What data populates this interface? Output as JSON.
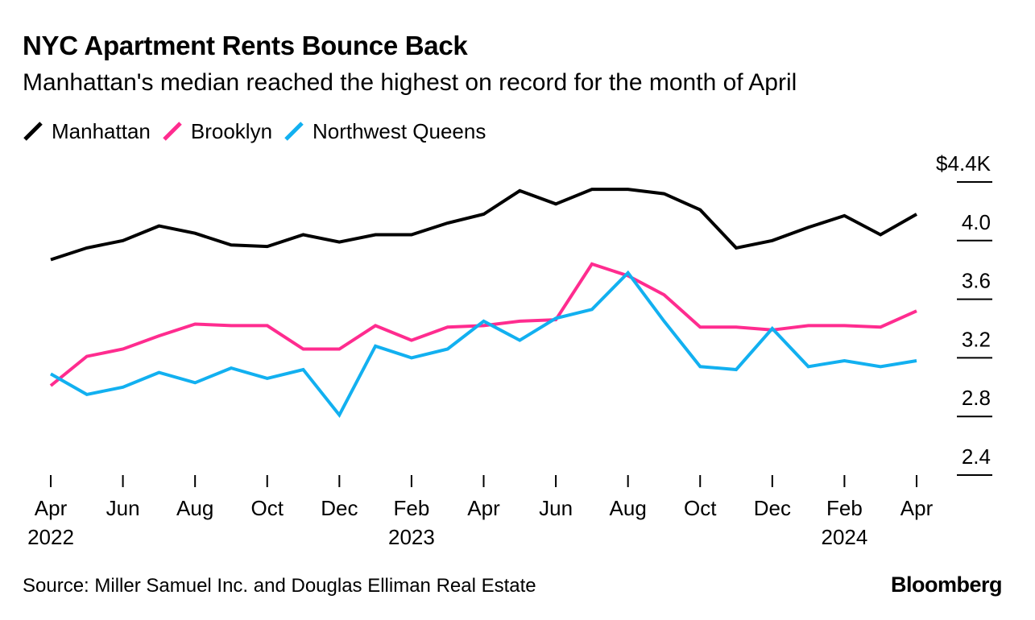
{
  "chart_data": {
    "type": "line",
    "title": "NYC Apartment Rents Bounce Back",
    "subtitle": "Manhattan's median reached the highest on record for the month of April",
    "xlabel": "",
    "ylabel": "",
    "x": [
      "Apr 2022",
      "May 2022",
      "Jun 2022",
      "Jul 2022",
      "Aug 2022",
      "Sep 2022",
      "Oct 2022",
      "Nov 2022",
      "Dec 2022",
      "Jan 2023",
      "Feb 2023",
      "Mar 2023",
      "Apr 2023",
      "May 2023",
      "Jun 2023",
      "Jul 2023",
      "Aug 2023",
      "Sep 2023",
      "Oct 2023",
      "Nov 2023",
      "Dec 2023",
      "Jan 2024",
      "Feb 2024",
      "Mar 2024",
      "Apr 2024"
    ],
    "ylim": [
      2.4,
      4.4
    ],
    "y_ticks": [
      {
        "value": 4.4,
        "label": "$4.4K"
      },
      {
        "value": 4.0,
        "label": "4.0"
      },
      {
        "value": 3.6,
        "label": "3.6"
      },
      {
        "value": 3.2,
        "label": "3.2"
      },
      {
        "value": 2.8,
        "label": "2.8"
      },
      {
        "value": 2.4,
        "label": "2.4"
      }
    ],
    "x_ticks": [
      {
        "index": 0,
        "month": "Apr",
        "year": "2022"
      },
      {
        "index": 2,
        "month": "Jun",
        "year": ""
      },
      {
        "index": 4,
        "month": "Aug",
        "year": ""
      },
      {
        "index": 6,
        "month": "Oct",
        "year": ""
      },
      {
        "index": 8,
        "month": "Dec",
        "year": ""
      },
      {
        "index": 10,
        "month": "Feb",
        "year": "2023"
      },
      {
        "index": 12,
        "month": "Apr",
        "year": ""
      },
      {
        "index": 14,
        "month": "Jun",
        "year": ""
      },
      {
        "index": 16,
        "month": "Aug",
        "year": ""
      },
      {
        "index": 18,
        "month": "Oct",
        "year": ""
      },
      {
        "index": 20,
        "month": "Dec",
        "year": ""
      },
      {
        "index": 22,
        "month": "Feb",
        "year": "2024"
      },
      {
        "index": 24,
        "month": "Apr",
        "year": ""
      }
    ],
    "series": [
      {
        "name": "Manhattan",
        "color": "#000000",
        "values": [
          3.87,
          3.95,
          4.0,
          4.1,
          4.05,
          3.97,
          3.96,
          4.04,
          3.99,
          4.04,
          4.04,
          4.12,
          4.18,
          4.34,
          4.25,
          4.35,
          4.35,
          4.32,
          4.21,
          3.95,
          4.0,
          4.09,
          4.17,
          4.04,
          4.18
        ]
      },
      {
        "name": "Brooklyn",
        "color": "#ff2c8f",
        "values": [
          3.01,
          3.21,
          3.26,
          3.35,
          3.43,
          3.42,
          3.42,
          3.26,
          3.26,
          3.42,
          3.32,
          3.41,
          3.42,
          3.45,
          3.46,
          3.84,
          3.76,
          3.63,
          3.41,
          3.41,
          3.39,
          3.42,
          3.42,
          3.41,
          3.52
        ]
      },
      {
        "name": "Northwest Queens",
        "color": "#12b0f0",
        "values": [
          3.09,
          2.95,
          3.0,
          3.1,
          3.03,
          3.13,
          3.06,
          3.12,
          2.81,
          3.28,
          3.2,
          3.26,
          3.45,
          3.32,
          3.47,
          3.53,
          3.78,
          3.45,
          3.14,
          3.12,
          3.4,
          3.14,
          3.18,
          3.14,
          3.18
        ]
      }
    ]
  },
  "legend": {
    "items": [
      {
        "label": "Manhattan",
        "color": "#000000"
      },
      {
        "label": "Brooklyn",
        "color": "#ff2c8f"
      },
      {
        "label": "Northwest Queens",
        "color": "#12b0f0"
      }
    ]
  },
  "footer": {
    "source": "Source: Miller Samuel Inc. and Douglas Elliman Real Estate",
    "brand": "Bloomberg"
  }
}
